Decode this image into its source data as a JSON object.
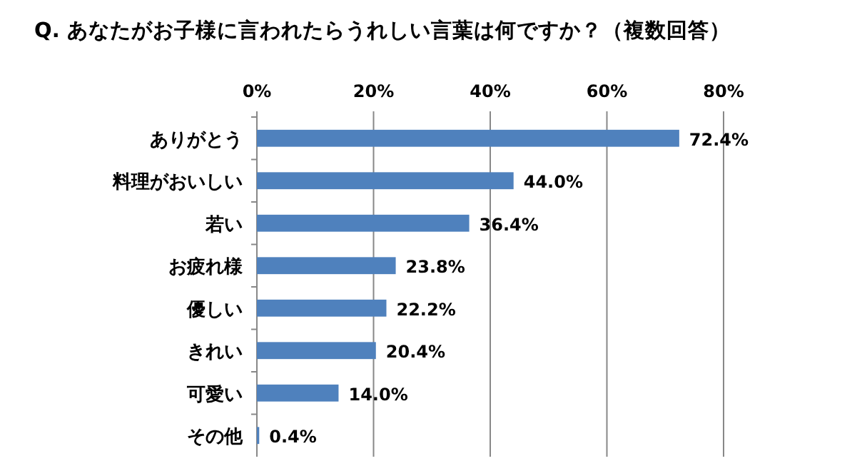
{
  "chart_data": {
    "type": "bar",
    "orientation": "horizontal",
    "title": "Q.  あなたがお子様に言われたらうれしい言葉は何ですか？（複数回答）",
    "categories": [
      "ありがとう",
      "料理がおいしい",
      "若い",
      "お疲れ様",
      "優しい",
      "きれい",
      "可愛い",
      "その他"
    ],
    "values": [
      72.4,
      44.0,
      36.4,
      23.8,
      22.2,
      20.4,
      14.0,
      0.4
    ],
    "value_labels": [
      "72.4%",
      "44.0%",
      "36.4%",
      "23.8%",
      "22.2%",
      "20.4%",
      "14.0%",
      "0.4%"
    ],
    "color": "#4f81bd",
    "xlim": [
      0,
      80
    ],
    "xticks": [
      {
        "value": 0,
        "label": "0%"
      },
      {
        "value": 20,
        "label": "20%"
      },
      {
        "value": 40,
        "label": "40%"
      },
      {
        "value": 60,
        "label": "60%"
      },
      {
        "value": 80,
        "label": "80%"
      }
    ],
    "grid": "x"
  }
}
